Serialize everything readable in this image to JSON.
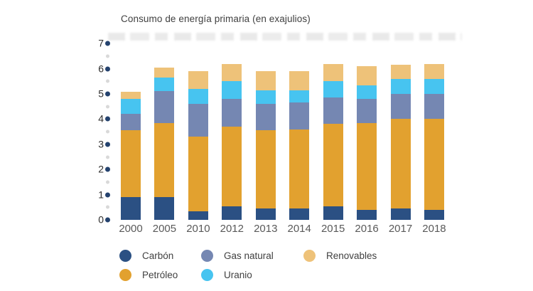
{
  "title": "Consumo de energía primaria (en exajulios)",
  "colors": {
    "carbon": "#2B5083",
    "petroleo": "#E2A12F",
    "gas_natural": "#7587B2",
    "uranio": "#47C4F0",
    "renovables": "#EEC279",
    "axis_major_dot": "#24426E",
    "axis_minor_dot": "#D9D9D9",
    "title_text": "#404040",
    "x_label_text": "#595959"
  },
  "legend": {
    "items": [
      {
        "label": "Carbón",
        "color": "#2B5083"
      },
      {
        "label": "Petróleo",
        "color": "#E2A12F"
      },
      {
        "label": "Gas natural",
        "color": "#7587B2"
      },
      {
        "label": "Uranio",
        "color": "#47C4F0"
      },
      {
        "label": "Renovables",
        "color": "#EEC279"
      }
    ]
  },
  "chart_data": {
    "type": "bar",
    "stacked": true,
    "title": "Consumo de energía primaria (en exajulios)",
    "xlabel": "",
    "ylabel": "",
    "ylim": [
      0,
      7
    ],
    "ytick_step": 1,
    "yminor_step": 0.5,
    "grid": "dotted-axis-only",
    "legend_position": "bottom",
    "categories": [
      "2000",
      "2005",
      "2010",
      "2012",
      "2013",
      "2014",
      "2015",
      "2016",
      "2017",
      "2018"
    ],
    "series": [
      {
        "name": "Carbón",
        "color": "#2B5083",
        "values": [
          0.9,
          0.9,
          0.35,
          0.55,
          0.45,
          0.45,
          0.55,
          0.4,
          0.45,
          0.4
        ]
      },
      {
        "name": "Petróleo",
        "color": "#E2A12F",
        "values": [
          2.65,
          2.95,
          2.95,
          3.15,
          3.1,
          3.15,
          3.25,
          3.45,
          3.55,
          3.6
        ]
      },
      {
        "name": "Gas natural",
        "color": "#7587B2",
        "values": [
          0.65,
          1.25,
          1.3,
          1.1,
          1.05,
          1.05,
          1.05,
          0.95,
          1.0,
          1.0
        ]
      },
      {
        "name": "Uranio",
        "color": "#47C4F0",
        "values": [
          0.6,
          0.55,
          0.6,
          0.7,
          0.55,
          0.5,
          0.65,
          0.55,
          0.6,
          0.6
        ]
      },
      {
        "name": "Renovables",
        "color": "#EEC279",
        "values": [
          0.3,
          0.4,
          0.7,
          0.7,
          0.75,
          0.75,
          0.7,
          0.75,
          0.55,
          0.6
        ]
      }
    ],
    "totals": [
      5.1,
      6.05,
      5.9,
      6.2,
      5.9,
      5.9,
      6.2,
      6.1,
      6.15,
      6.2
    ]
  }
}
